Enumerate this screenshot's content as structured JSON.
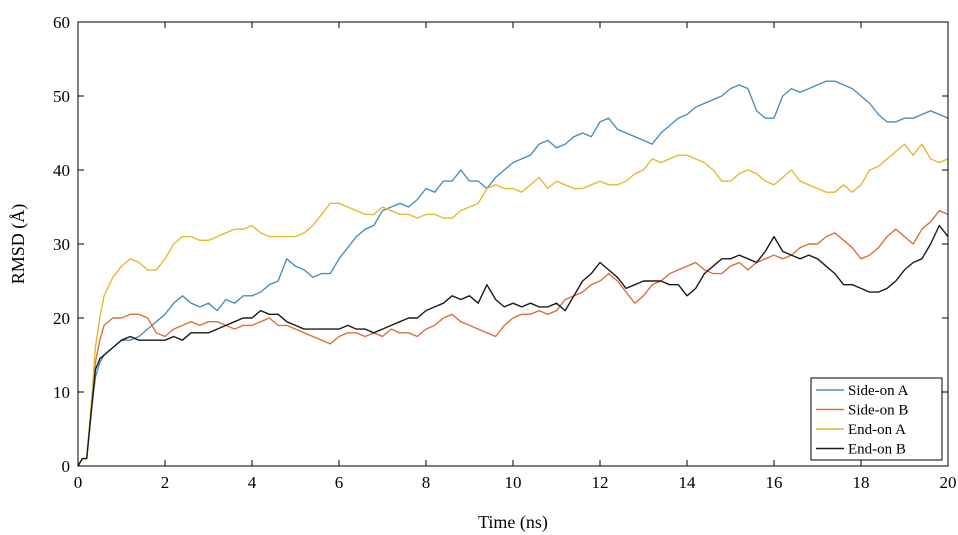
{
  "chart_data": {
    "type": "line",
    "title": "",
    "xlabel": "Time (ns)",
    "ylabel": "RMSD (Å)",
    "xlim": [
      0,
      20
    ],
    "ylim": [
      0,
      60
    ],
    "xticks": [
      0,
      2,
      4,
      6,
      8,
      10,
      12,
      14,
      16,
      18,
      20
    ],
    "yticks": [
      0,
      10,
      20,
      30,
      40,
      50,
      60
    ],
    "xtick_labels": [
      "0",
      "2",
      "4",
      "6",
      "8",
      "10",
      "12",
      "14",
      "16",
      "18",
      "20"
    ],
    "ytick_labels": [
      "0",
      "10",
      "20",
      "30",
      "40",
      "50",
      "60"
    ],
    "grid": false,
    "legend": {
      "position": "bottom-right"
    },
    "series": [
      {
        "name": "Side-on A",
        "color": "#4a8fc4",
        "x": [
          0,
          0.1,
          0.2,
          0.3,
          0.4,
          0.5,
          0.6,
          0.8,
          1.0,
          1.2,
          1.4,
          1.6,
          1.8,
          2.0,
          2.2,
          2.4,
          2.6,
          2.8,
          3.0,
          3.2,
          3.4,
          3.6,
          3.8,
          4.0,
          4.2,
          4.4,
          4.6,
          4.8,
          5.0,
          5.2,
          5.4,
          5.6,
          5.8,
          6.0,
          6.2,
          6.4,
          6.6,
          6.8,
          7.0,
          7.2,
          7.4,
          7.6,
          7.8,
          8.0,
          8.2,
          8.4,
          8.6,
          8.8,
          9.0,
          9.2,
          9.4,
          9.6,
          9.8,
          10.0,
          10.2,
          10.4,
          10.6,
          10.8,
          11.0,
          11.2,
          11.4,
          11.6,
          11.8,
          12.0,
          12.2,
          12.4,
          12.6,
          12.8,
          13.0,
          13.2,
          13.4,
          13.6,
          13.8,
          14.0,
          14.2,
          14.4,
          14.6,
          14.8,
          15.0,
          15.2,
          15.4,
          15.6,
          15.8,
          16.0,
          16.2,
          16.4,
          16.6,
          16.8,
          17.0,
          17.2,
          17.4,
          17.6,
          17.8,
          18.0,
          18.2,
          18.4,
          18.6,
          18.8,
          19.0,
          19.2,
          19.4,
          19.6,
          19.8,
          20.0
        ],
        "values": [
          0,
          1,
          1,
          7,
          12,
          14,
          15,
          16,
          17,
          17,
          17.5,
          18.5,
          19.5,
          20.5,
          22,
          23,
          22,
          21.5,
          22,
          21,
          22.5,
          22,
          23,
          23,
          23.5,
          24.5,
          25,
          28,
          27,
          26.5,
          25.5,
          26,
          26,
          28,
          29.5,
          31,
          32,
          32.5,
          34.5,
          35,
          35.5,
          35,
          36,
          37.5,
          37,
          38.5,
          38.5,
          40,
          38.5,
          38.5,
          37.5,
          39,
          40,
          41,
          41.5,
          42,
          43.5,
          44,
          43,
          43.5,
          44.5,
          45,
          44.5,
          46.5,
          47,
          45.5,
          45,
          44.5,
          44,
          43.5,
          45,
          46,
          47,
          47.5,
          48.5,
          49,
          49.5,
          50,
          51,
          51.5,
          51,
          48,
          47,
          47,
          50,
          51,
          50.5,
          51,
          51.5,
          52,
          52,
          51.5,
          51,
          50,
          49,
          47.5,
          46.5,
          46.5,
          47,
          47,
          47.5,
          48,
          47.5,
          47
        ]
      },
      {
        "name": "Side-on B",
        "color": "#d9703d",
        "x": [
          0,
          0.1,
          0.2,
          0.3,
          0.4,
          0.5,
          0.6,
          0.8,
          1.0,
          1.2,
          1.4,
          1.6,
          1.8,
          2.0,
          2.2,
          2.4,
          2.6,
          2.8,
          3.0,
          3.2,
          3.4,
          3.6,
          3.8,
          4.0,
          4.2,
          4.4,
          4.6,
          4.8,
          5.0,
          5.2,
          5.4,
          5.6,
          5.8,
          6.0,
          6.2,
          6.4,
          6.6,
          6.8,
          7.0,
          7.2,
          7.4,
          7.6,
          7.8,
          8.0,
          8.2,
          8.4,
          8.6,
          8.8,
          9.0,
          9.2,
          9.4,
          9.6,
          9.8,
          10.0,
          10.2,
          10.4,
          10.6,
          10.8,
          11.0,
          11.2,
          11.4,
          11.6,
          11.8,
          12.0,
          12.2,
          12.4,
          12.6,
          12.8,
          13.0,
          13.2,
          13.4,
          13.6,
          13.8,
          14.0,
          14.2,
          14.4,
          14.6,
          14.8,
          15.0,
          15.2,
          15.4,
          15.6,
          15.8,
          16.0,
          16.2,
          16.4,
          16.6,
          16.8,
          17.0,
          17.2,
          17.4,
          17.6,
          17.8,
          18.0,
          18.2,
          18.4,
          18.6,
          18.8,
          19.0,
          19.2,
          19.4,
          19.6,
          19.8,
          20.0
        ],
        "values": [
          0,
          1,
          1,
          7,
          14,
          17,
          19,
          20,
          20,
          20.5,
          20.5,
          20,
          18,
          17.5,
          18.5,
          19,
          19.5,
          19,
          19.5,
          19.5,
          19,
          18.5,
          19,
          19,
          19.5,
          20,
          19,
          19,
          18.5,
          18,
          17.5,
          17,
          16.5,
          17.5,
          18,
          18,
          17.5,
          18,
          17.5,
          18.5,
          18,
          18,
          17.5,
          18.5,
          19,
          20,
          20.5,
          19.5,
          19,
          18.5,
          18,
          17.5,
          19,
          20,
          20.5,
          20.5,
          21,
          20.5,
          21,
          22.5,
          23,
          23.5,
          24.5,
          25,
          26,
          25,
          23.5,
          22,
          23,
          24.5,
          25,
          26,
          26.5,
          27,
          27.5,
          26.5,
          26,
          26,
          27,
          27.5,
          26.5,
          27.5,
          28,
          28.5,
          28,
          28.5,
          29.5,
          30,
          30,
          31,
          31.5,
          30.5,
          29.5,
          28,
          28.5,
          29.5,
          31,
          32,
          31,
          30,
          32,
          33,
          34.5,
          34
        ]
      },
      {
        "name": "End-on A",
        "color": "#e8b832",
        "x": [
          0,
          0.1,
          0.2,
          0.3,
          0.4,
          0.5,
          0.6,
          0.8,
          1.0,
          1.2,
          1.4,
          1.6,
          1.8,
          2.0,
          2.2,
          2.4,
          2.6,
          2.8,
          3.0,
          3.2,
          3.4,
          3.6,
          3.8,
          4.0,
          4.2,
          4.4,
          4.6,
          4.8,
          5.0,
          5.2,
          5.4,
          5.6,
          5.8,
          6.0,
          6.2,
          6.4,
          6.6,
          6.8,
          7.0,
          7.2,
          7.4,
          7.6,
          7.8,
          8.0,
          8.2,
          8.4,
          8.6,
          8.8,
          9.0,
          9.2,
          9.4,
          9.6,
          9.8,
          10.0,
          10.2,
          10.4,
          10.6,
          10.8,
          11.0,
          11.2,
          11.4,
          11.6,
          11.8,
          12.0,
          12.2,
          12.4,
          12.6,
          12.8,
          13.0,
          13.2,
          13.4,
          13.6,
          13.8,
          14.0,
          14.2,
          14.4,
          14.6,
          14.8,
          15.0,
          15.2,
          15.4,
          15.6,
          15.8,
          16.0,
          16.2,
          16.4,
          16.6,
          16.8,
          17.0,
          17.2,
          17.4,
          17.6,
          17.8,
          18.0,
          18.2,
          18.4,
          18.6,
          18.8,
          19.0,
          19.2,
          19.4,
          19.6,
          19.8,
          20.0
        ],
        "values": [
          0,
          1,
          1,
          8,
          16,
          20,
          23,
          25.5,
          27,
          28,
          27.5,
          26.5,
          26.5,
          28,
          30,
          31,
          31,
          30.5,
          30.5,
          31,
          31.5,
          32,
          32,
          32.5,
          31.5,
          31,
          31,
          31,
          31,
          31.5,
          32.5,
          34,
          35.5,
          35.5,
          35,
          34.5,
          34,
          34,
          35,
          34.5,
          34,
          34,
          33.5,
          34,
          34,
          33.5,
          33.5,
          34.5,
          35,
          35.5,
          37.5,
          38,
          37.5,
          37.5,
          37,
          38,
          39,
          37.5,
          38.5,
          38,
          37.5,
          37.5,
          38,
          38.5,
          38,
          38,
          38.5,
          39.5,
          40,
          41.5,
          41,
          41.5,
          42,
          42,
          41.5,
          41,
          40,
          38.5,
          38.5,
          39.5,
          40,
          39.5,
          38.5,
          38,
          39,
          40,
          38.5,
          38,
          37.5,
          37,
          37,
          38,
          37,
          38,
          40,
          40.5,
          41.5,
          42.5,
          43.5,
          42,
          43.5,
          41.5,
          41,
          41.5
        ]
      },
      {
        "name": "End-on B",
        "color": "#1a1a1a",
        "x": [
          0,
          0.1,
          0.2,
          0.3,
          0.4,
          0.5,
          0.6,
          0.8,
          1.0,
          1.2,
          1.4,
          1.6,
          1.8,
          2.0,
          2.2,
          2.4,
          2.6,
          2.8,
          3.0,
          3.2,
          3.4,
          3.6,
          3.8,
          4.0,
          4.2,
          4.4,
          4.6,
          4.8,
          5.0,
          5.2,
          5.4,
          5.6,
          5.8,
          6.0,
          6.2,
          6.4,
          6.6,
          6.8,
          7.0,
          7.2,
          7.4,
          7.6,
          7.8,
          8.0,
          8.2,
          8.4,
          8.6,
          8.8,
          9.0,
          9.2,
          9.4,
          9.6,
          9.8,
          10.0,
          10.2,
          10.4,
          10.6,
          10.8,
          11.0,
          11.2,
          11.4,
          11.6,
          11.8,
          12.0,
          12.2,
          12.4,
          12.6,
          12.8,
          13.0,
          13.2,
          13.4,
          13.6,
          13.8,
          14.0,
          14.2,
          14.4,
          14.6,
          14.8,
          15.0,
          15.2,
          15.4,
          15.6,
          15.8,
          16.0,
          16.2,
          16.4,
          16.6,
          16.8,
          17.0,
          17.2,
          17.4,
          17.6,
          17.8,
          18.0,
          18.2,
          18.4,
          18.6,
          18.8,
          19.0,
          19.2,
          19.4,
          19.6,
          19.8,
          20.0
        ],
        "values": [
          0,
          1,
          1,
          7,
          13,
          14.5,
          15,
          16,
          17,
          17.5,
          17,
          17,
          17,
          17,
          17.5,
          17,
          18,
          18,
          18,
          18.5,
          19,
          19.5,
          20,
          20,
          21,
          20.5,
          20.5,
          19.5,
          19,
          18.5,
          18.5,
          18.5,
          18.5,
          18.5,
          19,
          18.5,
          18.5,
          18,
          18.5,
          19,
          19.5,
          20,
          20,
          21,
          21.5,
          22,
          23,
          22.5,
          23,
          22,
          24.5,
          22.5,
          21.5,
          22,
          21.5,
          22,
          21.5,
          21.5,
          22,
          21,
          23,
          25,
          26,
          27.5,
          26.5,
          25.5,
          24,
          24.5,
          25,
          25,
          25,
          24.5,
          24.5,
          23,
          24,
          26,
          27,
          28,
          28,
          28.5,
          28,
          27.5,
          29,
          31,
          29,
          28.5,
          28,
          28.5,
          28,
          27,
          26,
          24.5,
          24.5,
          24,
          23.5,
          23.5,
          24,
          25,
          26.5,
          27.5,
          28,
          30,
          32.5,
          31
        ]
      }
    ]
  }
}
